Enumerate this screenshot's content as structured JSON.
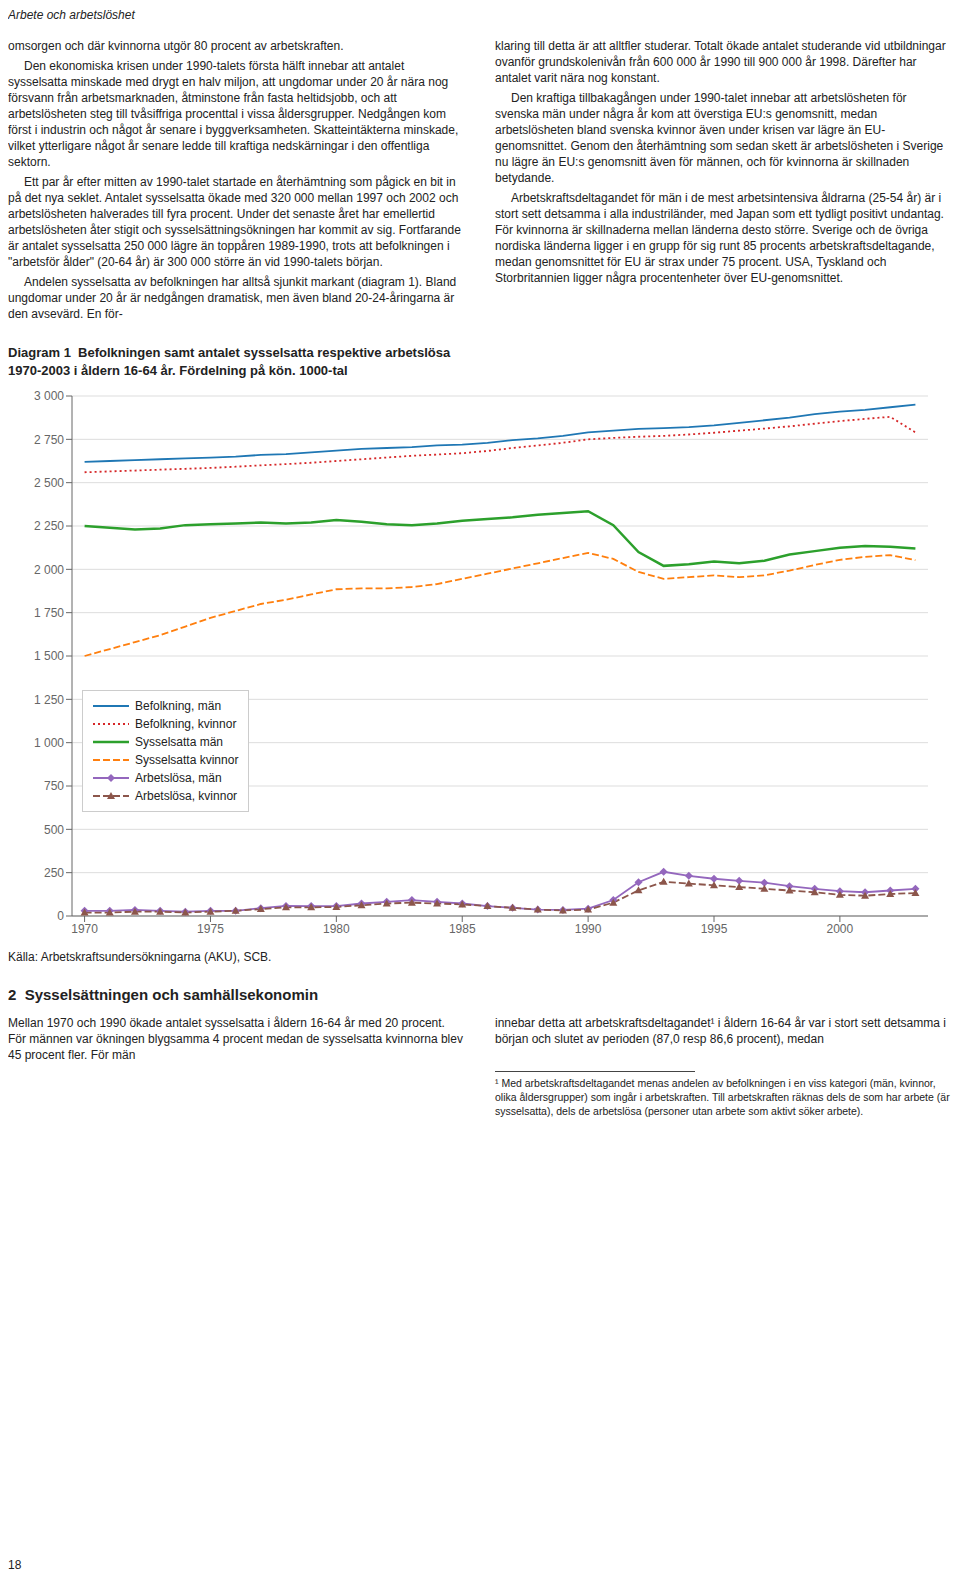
{
  "chart_data": {
    "type": "line",
    "title": "Diagram 1  Befolkningen samt antalet sysselsatta respektive arbetslösa\n1970-2003 i åldern 16-64 år. Fördelning på kön. 1000-tal",
    "annotations": [
      "Källa: Arbetskraftsundersökningarna (AKU), SCB."
    ],
    "x": [
      1970,
      1971,
      1972,
      1973,
      1974,
      1975,
      1976,
      1977,
      1978,
      1979,
      1980,
      1981,
      1982,
      1983,
      1984,
      1985,
      1986,
      1987,
      1988,
      1989,
      1990,
      1991,
      1992,
      1993,
      1994,
      1995,
      1996,
      1997,
      1998,
      1999,
      2000,
      2001,
      2002,
      2003
    ],
    "series": [
      {
        "name": "Befolkning, män",
        "color": "#1f77b4",
        "line_style": "solid",
        "values": [
          2620,
          2625,
          2630,
          2635,
          2640,
          2645,
          2650,
          2660,
          2665,
          2675,
          2685,
          2695,
          2700,
          2705,
          2715,
          2720,
          2730,
          2745,
          2755,
          2770,
          2790,
          2800,
          2810,
          2815,
          2820,
          2830,
          2845,
          2860,
          2875,
          2895,
          2910,
          2920,
          2935,
          2950
        ]
      },
      {
        "name": "Befolkning, kvinnor",
        "color": "#d62728",
        "line_style": "dotted",
        "values": [
          2560,
          2565,
          2570,
          2575,
          2580,
          2585,
          2592,
          2600,
          2607,
          2615,
          2625,
          2635,
          2645,
          2655,
          2662,
          2670,
          2683,
          2700,
          2715,
          2730,
          2750,
          2758,
          2765,
          2770,
          2778,
          2788,
          2800,
          2812,
          2825,
          2840,
          2855,
          2868,
          2880,
          2790
        ]
      },
      {
        "name": "Sysselsatta män",
        "color": "#2ca02c",
        "line_style": "solid",
        "values": [
          2250,
          2240,
          2230,
          2235,
          2255,
          2260,
          2265,
          2270,
          2265,
          2270,
          2285,
          2275,
          2260,
          2255,
          2265,
          2280,
          2290,
          2300,
          2315,
          2325,
          2335,
          2255,
          2100,
          2020,
          2030,
          2045,
          2035,
          2050,
          2085,
          2105,
          2125,
          2135,
          2130,
          2120
        ]
      },
      {
        "name": "Sysselsatta kvinnor",
        "color": "#ff7f0e",
        "line_style": "dashed",
        "values": [
          1500,
          1540,
          1580,
          1620,
          1670,
          1720,
          1760,
          1800,
          1825,
          1855,
          1885,
          1890,
          1890,
          1898,
          1915,
          1945,
          1975,
          2005,
          2035,
          2065,
          2095,
          2060,
          1985,
          1945,
          1955,
          1965,
          1955,
          1965,
          1993,
          2025,
          2055,
          2072,
          2082,
          2053
        ]
      },
      {
        "name": "Arbetslösa, män",
        "color": "#9467bd",
        "line_style": "solid",
        "marker": "diamond",
        "values": [
          30,
          30,
          35,
          30,
          25,
          30,
          30,
          45,
          58,
          57,
          57,
          72,
          82,
          92,
          82,
          72,
          57,
          47,
          37,
          35,
          42,
          92,
          195,
          255,
          232,
          215,
          203,
          192,
          172,
          157,
          143,
          137,
          147,
          157
        ]
      },
      {
        "name": "Arbetslösa, kvinnor",
        "color": "#8c564b",
        "line_style": "dashed",
        "marker": "triangle",
        "values": [
          20,
          20,
          25,
          25,
          20,
          25,
          30,
          40,
          50,
          50,
          52,
          62,
          72,
          77,
          72,
          67,
          57,
          47,
          37,
          32,
          37,
          77,
          148,
          197,
          187,
          177,
          167,
          157,
          147,
          137,
          122,
          117,
          127,
          132
        ]
      }
    ],
    "xlim": [
      1969.5,
      2003.5
    ],
    "xticks": [
      1970,
      1975,
      1980,
      1985,
      1990,
      1995,
      2000
    ],
    "ylim": [
      0,
      3000
    ],
    "yticks": [
      0,
      250,
      500,
      750,
      {
        "value": 1000,
        "label": "1 000"
      },
      {
        "value": 1250,
        "label": "1 250"
      },
      {
        "value": 1500,
        "label": "1 500"
      },
      {
        "value": 1750,
        "label": "1 750"
      },
      {
        "value": 2000,
        "label": "2 000"
      },
      {
        "value": 2250,
        "label": "2 250"
      },
      {
        "value": 2500,
        "label": "2 500"
      },
      {
        "value": 2750,
        "label": "2 750"
      },
      {
        "value": 3000,
        "label": "3 000"
      }
    ],
    "grid": true,
    "legend": "lower left"
  },
  "page": {
    "header": "Arbete och arbetslöshet",
    "page_number": "18",
    "body_columns": [
      [
        "omsorgen och där kvinnorna utgör 80 procent av arbetskraften.",
        "Den ekonomiska krisen under 1990-talets första hälft innebar att antalet sysselsatta minskade med drygt en halv miljon, att ungdomar under 20 år nära nog försvann från arbetsmarknaden, åtminstone från fasta heltidsjobb, och att arbetslösheten steg till tvåsiffriga procenttal i vissa åldersgrupper. Nedgången kom först i industrin och något år senare i byggverksamheten. Skatteintäkterna minskade, vilket ytterligare något år senare ledde till kraftiga nedskärningar i den offentliga sektorn.",
        "Ett par år efter mitten av 1990-talet startade en återhämtning som pågick en bit in på det nya seklet. Antalet sysselsatta ökade med 320 000 mellan 1997 och 2002 och arbetslösheten halverades till fyra procent. Under det senaste året har emellertid arbetslösheten åter stigit och sysselsättningsökningen har kommit av sig. Fortfarande är antalet sysselsatta 250 000 lägre än toppåren 1989-1990, trots att befolkningen i \"arbetsför ålder\" (20-64 år) är 300 000 större än vid 1990-talets början.",
        "Andelen sysselsatta av befolkningen har alltså sjunkit markant (diagram 1). Bland ungdomar under 20 år är nedgången dramatisk, men även bland 20-24-åringarna är den avsevärd. En för-"
      ],
      [
        "klaring till detta är att alltfler studerar. Totalt ökade antalet studerande vid utbildningar ovanför grundskolenivån från 600 000 år 1990 till 900 000 år 1998. Därefter har antalet varit nära nog konstant.",
        "Den kraftiga tillbakagången under 1990-talet innebar att arbetslösheten för svenska män under några år kom att överstiga EU:s genomsnitt, medan arbetslösheten bland svenska kvinnor även under krisen var lägre än EU-genomsnittet. Genom den återhämtning som sedan skett är arbetslösheten i Sverige nu lägre än EU:s genomsnitt även för männen, och för kvinnorna är skillnaden betydande.",
        "Arbetskraftsdeltagandet för män i de mest arbetsintensiva åldrarna (25-54 år) är i stort sett detsamma i alla industriländer, med Japan som ett tydligt positivt undantag. För kvinnorna är skillnaderna mellan länderna desto större. Sverige och de övriga nordiska länderna ligger i en grupp för sig runt 85 procents arbetskraftsdeltagande, medan genomsnittet för EU är strax under 75 procent. USA, Tyskland och Storbritannien ligger några procentenheter över EU-genomsnittet."
      ]
    ],
    "section_heading": "2  Sysselsättningen och samhällsekonomin",
    "section_columns": [
      [
        "Mellan 1970 och 1990 ökade antalet sysselsatta i åldern 16-64 år med 20 procent. För männen var ökningen blygsamma 4 procent medan de sysselsatta kvinnorna blev 45 procent fler. För män"
      ],
      [
        "innebar detta att arbetskraftsdeltagandet¹ i åldern 16-64 år var i stort sett detsamma i början och slutet av perioden (87,0 resp 86,6 procent), medan"
      ]
    ],
    "footnote": "¹ Med arbetskraftsdeltagandet menas andelen av befolkningen i en viss kategori (män, kvinnor, olika åldersgrupper) som ingår i arbetskraften. Till arbetskraften räknas dels de som har arbete (är sysselsatta), dels de arbetslösa (personer utan arbete som aktivt söker arbete)."
  }
}
